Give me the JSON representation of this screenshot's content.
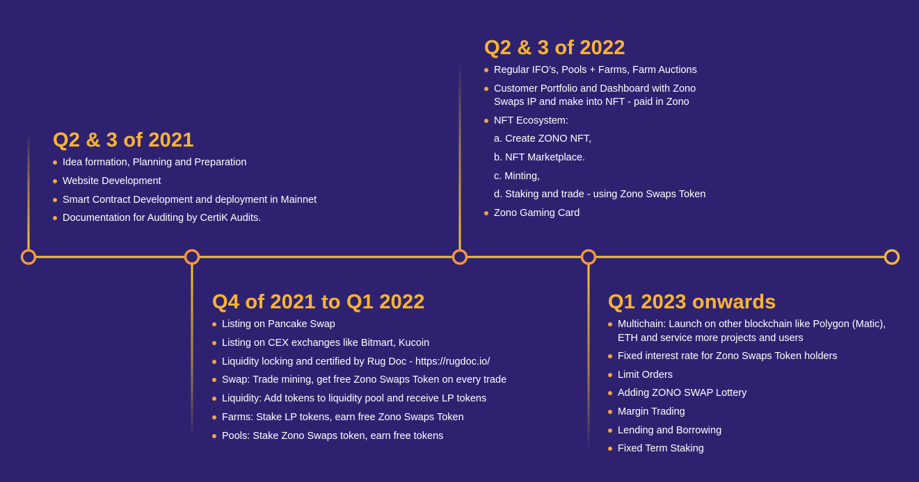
{
  "colors": {
    "background": "#2e2270",
    "heading": "#f7b234",
    "timeline": "#f5c33b",
    "node_ring": "#f59a3b",
    "bullet": "#f3a73a",
    "text": "#ffffff"
  },
  "milestones": [
    {
      "title": "Q2 & 3 of 2021",
      "items": [
        {
          "text": "Idea formation, Planning and Preparation",
          "bullet": true
        },
        {
          "text": "Website Development",
          "bullet": true
        },
        {
          "text": "Smart Contract Development and deployment in Mainnet",
          "bullet": true
        },
        {
          "text": "Documentation for Auditing by CertiK Audits.",
          "bullet": true
        }
      ]
    },
    {
      "title": "Q2 & 3 of 2022",
      "items": [
        {
          "text": "Regular IFO’s, Pools + Farms, Farm Auctions",
          "bullet": true
        },
        {
          "text": "Customer Portfolio and Dashboard with Zono",
          "bullet": true
        },
        {
          "text": "Swaps IP and make into NFT - paid in Zono",
          "bullet": false
        },
        {
          "text": "NFT Ecosystem:",
          "bullet": true
        },
        {
          "text": "a. Create ZONO NFT,",
          "bullet": false
        },
        {
          "text": "b. NFT Marketplace.",
          "bullet": false
        },
        {
          "text": "c. Minting,",
          "bullet": false
        },
        {
          "text": "d. Staking and trade - using Zono Swaps Token",
          "bullet": false
        },
        {
          "text": "Zono Gaming Card",
          "bullet": true
        }
      ]
    },
    {
      "title": "Q4 of 2021 to Q1 2022",
      "items": [
        {
          "text": "Listing on Pancake Swap",
          "bullet": true
        },
        {
          "text": "Listing on CEX exchanges like Bitmart, Kucoin",
          "bullet": true
        },
        {
          "text": "Liquidity locking and certified by Rug Doc - https://rugdoc.io/",
          "bullet": true
        },
        {
          "text": "Swap: Trade mining, get free Zono Swaps Token on every trade",
          "bullet": true
        },
        {
          "text": "Liquidity: Add tokens to liquidity pool and receive LP tokens",
          "bullet": true
        },
        {
          "text": "Farms: Stake LP tokens, earn free Zono Swaps Token",
          "bullet": true
        },
        {
          "text": "Pools: Stake Zono Swaps token, earn free tokens",
          "bullet": true
        }
      ]
    },
    {
      "title": "Q1 2023 onwards",
      "items": [
        {
          "text": "Multichain: Launch on other blockchain like Polygon (Matic),",
          "bullet": true
        },
        {
          "text": "ETH and service more projects and users",
          "bullet": false
        },
        {
          "text": "Fixed interest rate for Zono Swaps Token holders",
          "bullet": true
        },
        {
          "text": "Limit Orders",
          "bullet": true
        },
        {
          "text": "Adding ZONO SWAP Lottery",
          "bullet": true
        },
        {
          "text": "Margin Trading",
          "bullet": true
        },
        {
          "text": "Lending and Borrowing",
          "bullet": true
        },
        {
          "text": "Fixed Term Staking",
          "bullet": true
        }
      ]
    }
  ]
}
